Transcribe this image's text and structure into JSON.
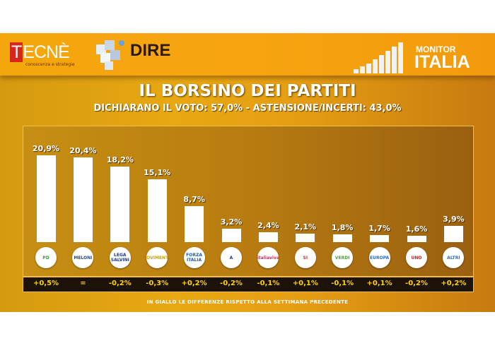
{
  "header": {
    "brand_left": "TECNÈ",
    "brand_left_sub": "conoscenza e strategie",
    "brand_mid": "DIRE",
    "brand_right_top": "MONITOR",
    "brand_right_bottom": "ITALIA"
  },
  "chart_data": {
    "type": "bar",
    "title": "IL BORSINO DEI PARTITI",
    "subtitle": "DICHIARANO IL VOTO: 57,0% - ASTENSIONE/INCERTI: 43,0%",
    "categories": [
      "PD",
      "Fratelli d'Italia Meloni",
      "Lega Salvini",
      "MoVimento 5 Stelle",
      "Forza Italia Berlusconi",
      "Azione",
      "Italia Viva",
      "Sinistra Italiana",
      "Europa Verde",
      "+Europa",
      "Noi con l'Italia UNO",
      "ALTRI"
    ],
    "values": [
      20.9,
      20.4,
      18.2,
      15.1,
      8.7,
      3.2,
      2.4,
      2.1,
      1.8,
      1.7,
      1.6,
      3.9
    ],
    "value_labels": [
      "20,9%",
      "20,4%",
      "18,2%",
      "15,1%",
      "8,7%",
      "3,2%",
      "2,4%",
      "2,1%",
      "1,8%",
      "1,7%",
      "1,6%",
      "3,9%"
    ],
    "deltas": [
      "+0,5%",
      "=",
      "-0,2%",
      "-0,3%",
      "+0,2%",
      "-0,2%",
      "-0,1%",
      "+0,1%",
      "-0,1%",
      "+0,1%",
      "-0,2%",
      "+0,2%"
    ],
    "logo_text": [
      "PD",
      "MELONI",
      "LEGA SALVINI",
      "MOVIMENTO",
      "FORZA ITALIA",
      "A",
      "italiaviva",
      "SI",
      "VERDI",
      "EUROPA",
      "UNO",
      "ALTRI"
    ],
    "logo_colors": [
      "#2e9b3a",
      "#1b4f8a",
      "#1f3a8a",
      "#c9a400",
      "#1a5fb4",
      "#1c3e94",
      "#d2245a",
      "#e42326",
      "#4aa832",
      "#2a6fc4",
      "#c81e1e",
      "#2a6fc4"
    ],
    "ylim": [
      0,
      22
    ],
    "grid": false,
    "footnote": "IN GIALLO LE DIFFERENZE RISPETTO ALLA SETTIMANA PRECEDENTE",
    "colors": {
      "bar": "#ffffff",
      "delta": "#ffd400",
      "background": "#e0a012"
    }
  }
}
